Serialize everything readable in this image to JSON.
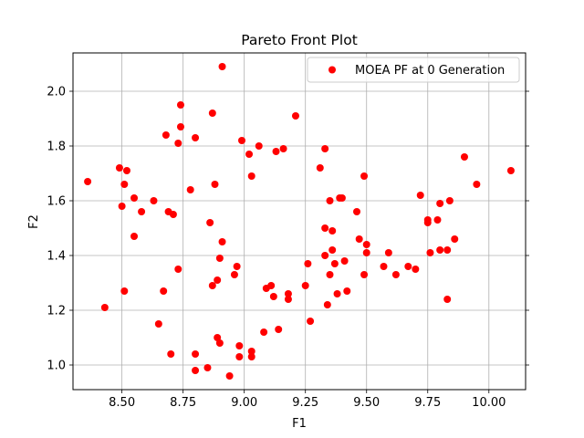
{
  "chart_data": {
    "type": "scatter",
    "title": "Pareto Front Plot",
    "xlabel": "F1",
    "ylabel": "F2",
    "xlim": [
      8.3,
      10.15
    ],
    "ylim": [
      0.91,
      2.14
    ],
    "xticks": [
      "8.50",
      "8.75",
      "9.00",
      "9.25",
      "9.50",
      "9.75",
      "10.00"
    ],
    "xtick_values": [
      8.5,
      8.75,
      9.0,
      9.25,
      9.5,
      9.75,
      10.0
    ],
    "yticks": [
      "1.0",
      "1.2",
      "1.4",
      "1.6",
      "1.8",
      "2.0"
    ],
    "ytick_values": [
      1.0,
      1.2,
      1.4,
      1.6,
      1.8,
      2.0
    ],
    "grid": true,
    "legend_position": "top-right",
    "series": [
      {
        "name": "MOEA PF at 0 Generation",
        "color": "#ff0000",
        "x": [
          8.36,
          8.43,
          8.49,
          8.5,
          8.51,
          8.52,
          8.51,
          8.55,
          8.55,
          8.58,
          8.63,
          8.65,
          8.67,
          8.68,
          8.69,
          8.7,
          8.71,
          8.73,
          8.73,
          8.74,
          8.74,
          8.78,
          8.8,
          8.8,
          8.8,
          8.85,
          8.86,
          8.87,
          8.87,
          8.88,
          8.89,
          8.89,
          8.9,
          8.91,
          8.9,
          8.91,
          8.94,
          8.96,
          8.97,
          8.98,
          8.98,
          8.99,
          9.02,
          9.03,
          9.03,
          9.03,
          9.06,
          9.08,
          9.09,
          9.11,
          9.12,
          9.13,
          9.14,
          9.16,
          9.18,
          9.18,
          9.21,
          9.25,
          9.26,
          9.27,
          9.31,
          9.33,
          9.33,
          9.33,
          9.34,
          9.35,
          9.35,
          9.36,
          9.36,
          9.37,
          9.38,
          9.39,
          9.4,
          9.41,
          9.42,
          9.46,
          9.47,
          9.49,
          9.49,
          9.5,
          9.5,
          9.57,
          9.59,
          9.62,
          9.67,
          9.7,
          9.72,
          9.75,
          9.75,
          9.76,
          9.79,
          9.8,
          9.8,
          9.83,
          9.83,
          9.84,
          9.86,
          9.9,
          9.95,
          10.09
        ],
        "y": [
          1.67,
          1.21,
          1.72,
          1.58,
          1.66,
          1.71,
          1.27,
          1.61,
          1.47,
          1.56,
          1.6,
          1.15,
          1.27,
          1.84,
          1.56,
          1.04,
          1.55,
          1.81,
          1.35,
          1.87,
          1.95,
          1.64,
          1.83,
          1.04,
          0.98,
          0.99,
          1.52,
          1.29,
          1.92,
          1.66,
          1.31,
          1.1,
          1.39,
          1.45,
          1.08,
          2.09,
          0.96,
          1.33,
          1.36,
          1.07,
          1.03,
          1.82,
          1.77,
          1.69,
          1.05,
          1.03,
          1.8,
          1.12,
          1.28,
          1.29,
          1.25,
          1.78,
          1.13,
          1.79,
          1.26,
          1.24,
          1.91,
          1.29,
          1.37,
          1.16,
          1.72,
          1.79,
          1.5,
          1.4,
          1.22,
          1.33,
          1.6,
          1.42,
          1.49,
          1.37,
          1.26,
          1.61,
          1.61,
          1.38,
          1.27,
          1.56,
          1.46,
          1.69,
          1.33,
          1.41,
          1.44,
          1.36,
          1.41,
          1.33,
          1.36,
          1.35,
          1.62,
          1.52,
          1.53,
          1.41,
          1.53,
          1.59,
          1.42,
          1.24,
          1.42,
          1.6,
          1.46,
          1.76,
          1.66,
          1.71
        ]
      }
    ]
  }
}
